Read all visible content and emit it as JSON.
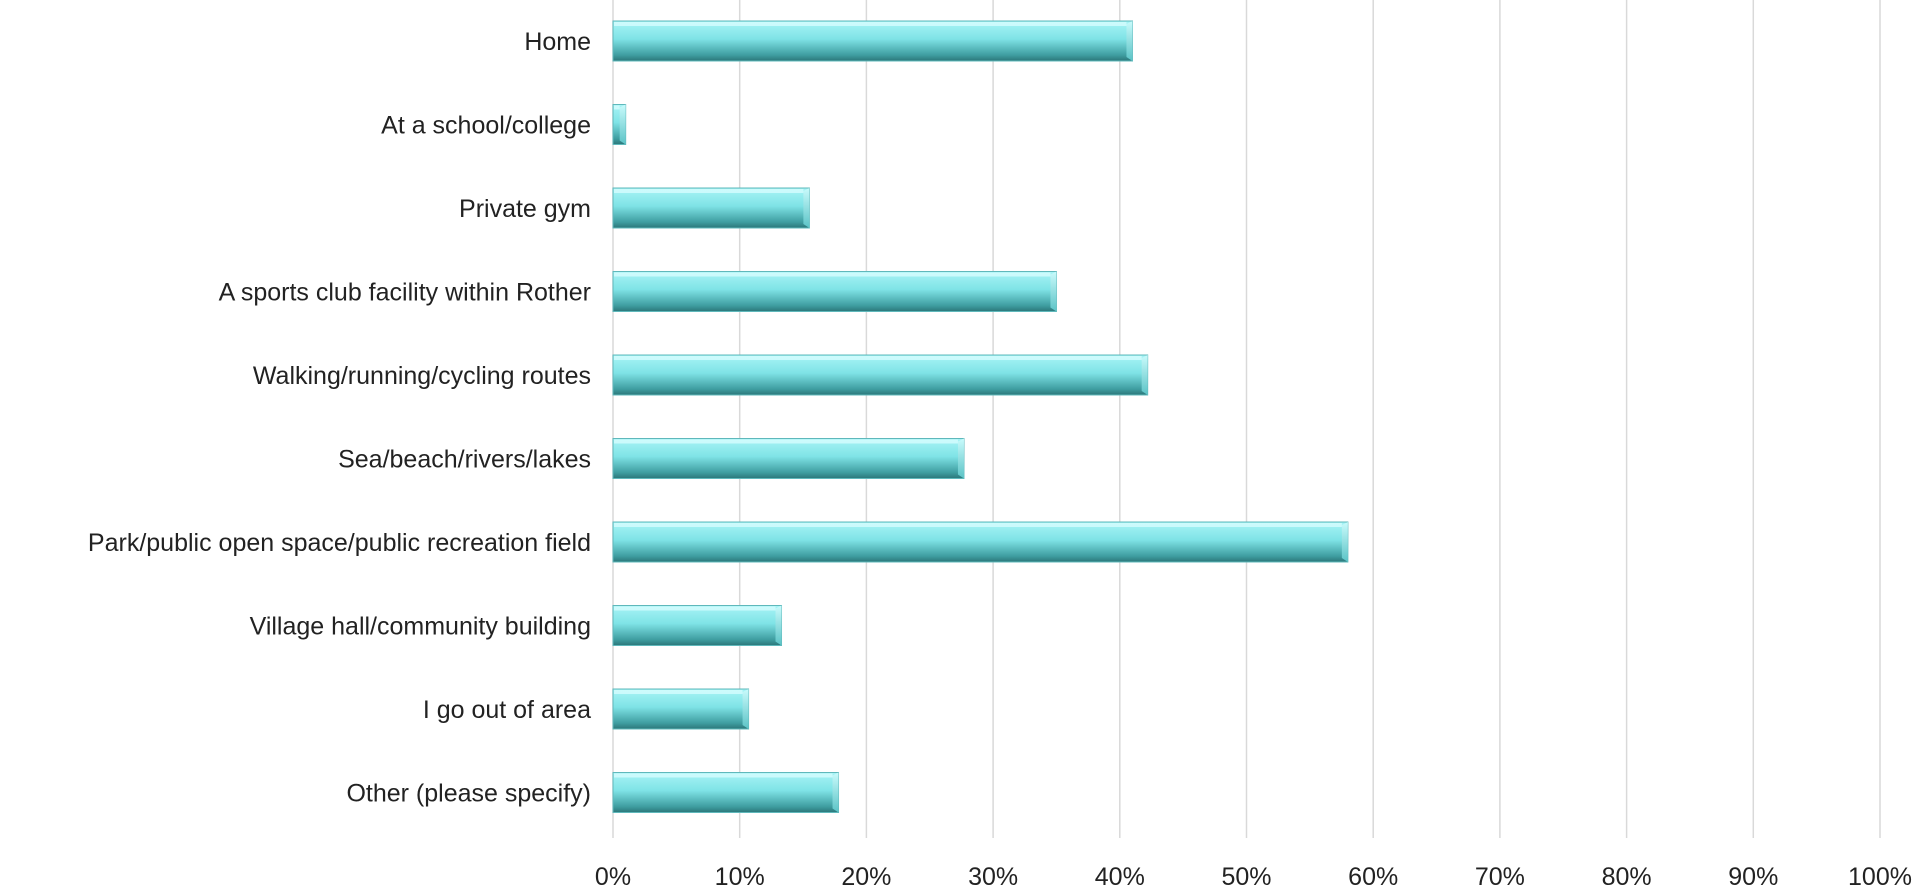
{
  "chart_data": {
    "type": "bar",
    "orientation": "horizontal",
    "title": "",
    "xlabel": "",
    "ylabel": "",
    "categories": [
      "Home",
      "At a school/college",
      "Private gym",
      "A sports club facility within Rother",
      "Walking/running/cycling routes",
      "Sea/beach/rivers/lakes",
      "Park/public open space/public recreation field",
      "Village hall/community building",
      "I go out of area",
      "Other (please specify)"
    ],
    "values": [
      41.0,
      1.0,
      15.5,
      35.0,
      42.2,
      27.7,
      58.0,
      13.3,
      10.7,
      17.8
    ],
    "xlim": [
      0,
      100
    ],
    "x_ticks": [
      0,
      10,
      20,
      30,
      40,
      50,
      60,
      70,
      80,
      90,
      100
    ],
    "x_tick_labels": [
      "0%",
      "10%",
      "20%",
      "30%",
      "40%",
      "50%",
      "60%",
      "70%",
      "80%",
      "90%",
      "100%"
    ],
    "value_unit": "%",
    "grid": true,
    "legend": "none",
    "colors": {
      "bar_top": "#a8f4f6",
      "bar_mid": "#7fe3e6",
      "bar_bottom": "#3f9ea1",
      "bar_dark": "#2b7679",
      "grid": "#d9d9d9",
      "text": "#222222"
    }
  }
}
